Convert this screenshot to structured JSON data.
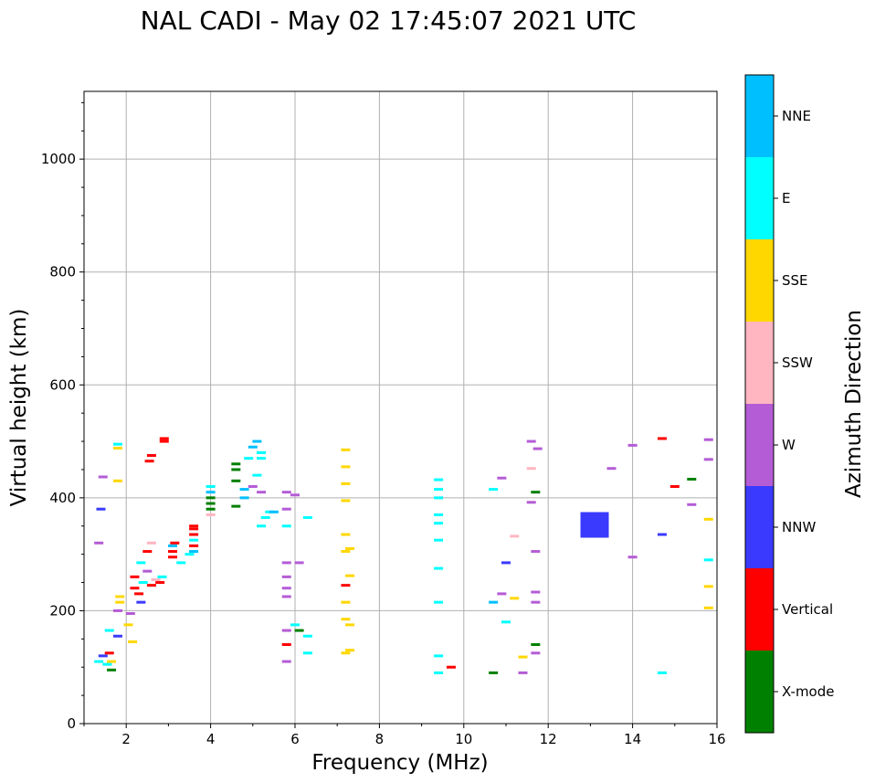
{
  "chart_data": {
    "type": "scatter",
    "title": "NAL CADI - May 02 17:45:07 2021 UTC",
    "xlabel": "Frequency (MHz)",
    "ylabel": "Virtual height (km)",
    "xlim": [
      1,
      16
    ],
    "ylim": [
      0,
      1120
    ],
    "xticks": [
      2,
      4,
      6,
      8,
      10,
      12,
      14,
      16
    ],
    "yticks": [
      0,
      200,
      400,
      600,
      800,
      1000
    ],
    "grid": true,
    "colorbar": {
      "label": "Azimuth Direction",
      "categories": [
        {
          "name": "X-mode",
          "color": "#008000"
        },
        {
          "name": "Vertical",
          "color": "#ff0000"
        },
        {
          "name": "NNW",
          "color": "#3a3aff"
        },
        {
          "name": "W",
          "color": "#b45cd6"
        },
        {
          "name": "SSW",
          "color": "#ffb6c1"
        },
        {
          "name": "SSE",
          "color": "#ffd700"
        },
        {
          "name": "E",
          "color": "#00ffff"
        },
        {
          "name": "NNE",
          "color": "#00bfff"
        }
      ]
    },
    "points": [
      {
        "f": 1.35,
        "h": 110,
        "d": "E"
      },
      {
        "f": 1.45,
        "h": 120,
        "d": "NNW"
      },
      {
        "f": 1.55,
        "h": 105,
        "d": "E"
      },
      {
        "f": 1.65,
        "h": 95,
        "d": "X-mode"
      },
      {
        "f": 1.6,
        "h": 125,
        "d": "Vertical"
      },
      {
        "f": 1.65,
        "h": 110,
        "d": "SSE"
      },
      {
        "f": 1.6,
        "h": 165,
        "d": "E"
      },
      {
        "f": 1.8,
        "h": 155,
        "d": "NNW"
      },
      {
        "f": 1.8,
        "h": 200,
        "d": "W"
      },
      {
        "f": 1.85,
        "h": 225,
        "d": "SSE"
      },
      {
        "f": 1.85,
        "h": 215,
        "d": "SSE"
      },
      {
        "f": 1.8,
        "h": 495,
        "d": "E"
      },
      {
        "f": 1.8,
        "h": 488,
        "d": "SSE"
      },
      {
        "f": 1.8,
        "h": 430,
        "d": "SSE"
      },
      {
        "f": 1.4,
        "h": 380,
        "d": "NNW"
      },
      {
        "f": 1.45,
        "h": 437,
        "d": "W"
      },
      {
        "f": 1.35,
        "h": 320,
        "d": "W"
      },
      {
        "f": 2.05,
        "h": 175,
        "d": "SSE"
      },
      {
        "f": 2.1,
        "h": 195,
        "d": "W"
      },
      {
        "f": 2.15,
        "h": 145,
        "d": "SSE"
      },
      {
        "f": 2.2,
        "h": 240,
        "d": "Vertical"
      },
      {
        "f": 2.2,
        "h": 260,
        "d": "Vertical"
      },
      {
        "f": 2.3,
        "h": 230,
        "d": "Vertical"
      },
      {
        "f": 2.35,
        "h": 215,
        "d": "NNW"
      },
      {
        "f": 2.4,
        "h": 250,
        "d": "E"
      },
      {
        "f": 2.5,
        "h": 270,
        "d": "W"
      },
      {
        "f": 2.6,
        "h": 245,
        "d": "Vertical"
      },
      {
        "f": 2.7,
        "h": 255,
        "d": "SSW"
      },
      {
        "f": 2.8,
        "h": 250,
        "d": "Vertical"
      },
      {
        "f": 2.85,
        "h": 260,
        "d": "E"
      },
      {
        "f": 2.35,
        "h": 285,
        "d": "E"
      },
      {
        "f": 2.5,
        "h": 305,
        "d": "Vertical"
      },
      {
        "f": 2.6,
        "h": 320,
        "d": "SSW"
      },
      {
        "f": 2.55,
        "h": 465,
        "d": "Vertical"
      },
      {
        "f": 2.6,
        "h": 475,
        "d": "Vertical"
      },
      {
        "f": 2.9,
        "h": 500,
        "d": "Vertical"
      },
      {
        "f": 2.9,
        "h": 505,
        "d": "Vertical"
      },
      {
        "f": 3.1,
        "h": 295,
        "d": "Vertical"
      },
      {
        "f": 3.1,
        "h": 305,
        "d": "Vertical"
      },
      {
        "f": 3.1,
        "h": 315,
        "d": "NNE"
      },
      {
        "f": 3.15,
        "h": 320,
        "d": "Vertical"
      },
      {
        "f": 3.3,
        "h": 285,
        "d": "E"
      },
      {
        "f": 3.6,
        "h": 305,
        "d": "NNE"
      },
      {
        "f": 3.6,
        "h": 315,
        "d": "Vertical"
      },
      {
        "f": 3.6,
        "h": 325,
        "d": "E"
      },
      {
        "f": 3.6,
        "h": 335,
        "d": "Vertical"
      },
      {
        "f": 3.6,
        "h": 345,
        "d": "Vertical"
      },
      {
        "f": 3.6,
        "h": 350,
        "d": "Vertical"
      },
      {
        "f": 3.5,
        "h": 300,
        "d": "E"
      },
      {
        "f": 4.0,
        "h": 370,
        "d": "SSW"
      },
      {
        "f": 4.0,
        "h": 380,
        "d": "X-mode"
      },
      {
        "f": 4.0,
        "h": 390,
        "d": "X-mode"
      },
      {
        "f": 4.0,
        "h": 400,
        "d": "X-mode"
      },
      {
        "f": 4.0,
        "h": 410,
        "d": "NNE"
      },
      {
        "f": 4.0,
        "h": 420,
        "d": "E"
      },
      {
        "f": 4.6,
        "h": 385,
        "d": "X-mode"
      },
      {
        "f": 4.6,
        "h": 430,
        "d": "X-mode"
      },
      {
        "f": 4.6,
        "h": 450,
        "d": "X-mode"
      },
      {
        "f": 4.6,
        "h": 460,
        "d": "X-mode"
      },
      {
        "f": 4.8,
        "h": 400,
        "d": "NNE"
      },
      {
        "f": 4.8,
        "h": 415,
        "d": "NNE"
      },
      {
        "f": 4.9,
        "h": 470,
        "d": "E"
      },
      {
        "f": 5.0,
        "h": 490,
        "d": "NNE"
      },
      {
        "f": 5.1,
        "h": 500,
        "d": "NNE"
      },
      {
        "f": 5.2,
        "h": 480,
        "d": "E"
      },
      {
        "f": 5.2,
        "h": 470,
        "d": "E"
      },
      {
        "f": 5.1,
        "h": 440,
        "d": "E"
      },
      {
        "f": 5.0,
        "h": 420,
        "d": "W"
      },
      {
        "f": 5.2,
        "h": 410,
        "d": "W"
      },
      {
        "f": 5.3,
        "h": 365,
        "d": "E"
      },
      {
        "f": 5.4,
        "h": 375,
        "d": "E"
      },
      {
        "f": 5.5,
        "h": 375,
        "d": "NNE"
      },
      {
        "f": 5.2,
        "h": 350,
        "d": "E"
      },
      {
        "f": 5.8,
        "h": 350,
        "d": "E"
      },
      {
        "f": 6.3,
        "h": 365,
        "d": "E"
      },
      {
        "f": 6.3,
        "h": 155,
        "d": "E"
      },
      {
        "f": 6.3,
        "h": 125,
        "d": "E"
      },
      {
        "f": 6.0,
        "h": 405,
        "d": "W"
      },
      {
        "f": 5.8,
        "h": 410,
        "d": "W"
      },
      {
        "f": 5.8,
        "h": 380,
        "d": "W"
      },
      {
        "f": 5.8,
        "h": 285,
        "d": "W"
      },
      {
        "f": 5.8,
        "h": 260,
        "d": "W"
      },
      {
        "f": 5.8,
        "h": 240,
        "d": "W"
      },
      {
        "f": 5.8,
        "h": 225,
        "d": "W"
      },
      {
        "f": 5.8,
        "h": 165,
        "d": "W"
      },
      {
        "f": 5.8,
        "h": 140,
        "d": "Vertical"
      },
      {
        "f": 5.8,
        "h": 110,
        "d": "W"
      },
      {
        "f": 6.1,
        "h": 285,
        "d": "W"
      },
      {
        "f": 6.1,
        "h": 165,
        "d": "X-mode"
      },
      {
        "f": 6.0,
        "h": 175,
        "d": "E"
      },
      {
        "f": 7.2,
        "h": 485,
        "d": "SSE"
      },
      {
        "f": 7.2,
        "h": 455,
        "d": "SSE"
      },
      {
        "f": 7.2,
        "h": 425,
        "d": "SSE"
      },
      {
        "f": 7.2,
        "h": 395,
        "d": "SSE"
      },
      {
        "f": 7.2,
        "h": 335,
        "d": "SSE"
      },
      {
        "f": 7.2,
        "h": 305,
        "d": "SSE"
      },
      {
        "f": 7.3,
        "h": 310,
        "d": "SSE"
      },
      {
        "f": 7.3,
        "h": 262,
        "d": "SSE"
      },
      {
        "f": 7.2,
        "h": 245,
        "d": "Vertical"
      },
      {
        "f": 7.2,
        "h": 215,
        "d": "SSE"
      },
      {
        "f": 7.2,
        "h": 185,
        "d": "SSE"
      },
      {
        "f": 7.3,
        "h": 175,
        "d": "SSE"
      },
      {
        "f": 7.2,
        "h": 125,
        "d": "SSE"
      },
      {
        "f": 7.3,
        "h": 130,
        "d": "SSE"
      },
      {
        "f": 9.4,
        "h": 432,
        "d": "E"
      },
      {
        "f": 9.4,
        "h": 415,
        "d": "E"
      },
      {
        "f": 9.4,
        "h": 400,
        "d": "E"
      },
      {
        "f": 9.4,
        "h": 370,
        "d": "E"
      },
      {
        "f": 9.4,
        "h": 355,
        "d": "E"
      },
      {
        "f": 9.4,
        "h": 325,
        "d": "E"
      },
      {
        "f": 9.4,
        "h": 275,
        "d": "E"
      },
      {
        "f": 9.4,
        "h": 215,
        "d": "E"
      },
      {
        "f": 9.4,
        "h": 120,
        "d": "E"
      },
      {
        "f": 9.4,
        "h": 90,
        "d": "E"
      },
      {
        "f": 9.7,
        "h": 100,
        "d": "Vertical"
      },
      {
        "f": 10.7,
        "h": 415,
        "d": "E"
      },
      {
        "f": 10.9,
        "h": 435,
        "d": "W"
      },
      {
        "f": 11.0,
        "h": 285,
        "d": "NNW"
      },
      {
        "f": 10.7,
        "h": 215,
        "d": "NNE"
      },
      {
        "f": 10.9,
        "h": 230,
        "d": "W"
      },
      {
        "f": 11.0,
        "h": 180,
        "d": "E"
      },
      {
        "f": 10.7,
        "h": 90,
        "d": "X-mode"
      },
      {
        "f": 11.2,
        "h": 332,
        "d": "SSW"
      },
      {
        "f": 11.2,
        "h": 222,
        "d": "SSE"
      },
      {
        "f": 11.4,
        "h": 118,
        "d": "SSE"
      },
      {
        "f": 11.4,
        "h": 90,
        "d": "W"
      },
      {
        "f": 11.6,
        "h": 500,
        "d": "W"
      },
      {
        "f": 11.75,
        "h": 487,
        "d": "W"
      },
      {
        "f": 11.6,
        "h": 452,
        "d": "SSW"
      },
      {
        "f": 11.7,
        "h": 410,
        "d": "X-mode"
      },
      {
        "f": 11.6,
        "h": 392,
        "d": "W"
      },
      {
        "f": 11.7,
        "h": 305,
        "d": "W"
      },
      {
        "f": 11.7,
        "h": 233,
        "d": "W"
      },
      {
        "f": 11.7,
        "h": 215,
        "d": "W"
      },
      {
        "f": 11.7,
        "h": 140,
        "d": "X-mode"
      },
      {
        "f": 11.7,
        "h": 125,
        "d": "W"
      },
      {
        "f": 13.1,
        "h": 352,
        "d": "NNW",
        "size": "large"
      },
      {
        "f": 13.5,
        "h": 452,
        "d": "W"
      },
      {
        "f": 14.0,
        "h": 493,
        "d": "W"
      },
      {
        "f": 14.0,
        "h": 295,
        "d": "W"
      },
      {
        "f": 14.7,
        "h": 505,
        "d": "Vertical"
      },
      {
        "f": 14.7,
        "h": 335,
        "d": "NNW"
      },
      {
        "f": 14.7,
        "h": 90,
        "d": "E"
      },
      {
        "f": 15.0,
        "h": 420,
        "d": "Vertical"
      },
      {
        "f": 15.4,
        "h": 433,
        "d": "X-mode"
      },
      {
        "f": 15.4,
        "h": 388,
        "d": "W"
      },
      {
        "f": 15.8,
        "h": 503,
        "d": "W"
      },
      {
        "f": 15.8,
        "h": 468,
        "d": "W"
      },
      {
        "f": 15.8,
        "h": 362,
        "d": "SSE"
      },
      {
        "f": 15.8,
        "h": 290,
        "d": "E"
      },
      {
        "f": 15.8,
        "h": 243,
        "d": "SSE"
      },
      {
        "f": 15.8,
        "h": 205,
        "d": "SSE"
      }
    ]
  }
}
